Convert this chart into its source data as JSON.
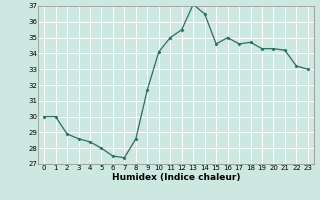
{
  "x": [
    0,
    1,
    2,
    3,
    4,
    5,
    6,
    7,
    8,
    9,
    10,
    11,
    12,
    13,
    14,
    15,
    16,
    17,
    18,
    19,
    20,
    21,
    22,
    23
  ],
  "y": [
    30.0,
    30.0,
    28.9,
    28.6,
    28.4,
    28.0,
    27.5,
    27.4,
    28.6,
    31.7,
    34.1,
    35.0,
    35.5,
    37.1,
    36.5,
    34.6,
    35.0,
    34.6,
    34.7,
    34.3,
    34.3,
    34.2,
    33.2,
    33.0
  ],
  "xlabel": "Humidex (Indice chaleur)",
  "ylim": [
    27,
    37
  ],
  "yticks": [
    27,
    28,
    29,
    30,
    31,
    32,
    33,
    34,
    35,
    36,
    37
  ],
  "xticks": [
    0,
    1,
    2,
    3,
    4,
    5,
    6,
    7,
    8,
    9,
    10,
    11,
    12,
    13,
    14,
    15,
    16,
    17,
    18,
    19,
    20,
    21,
    22,
    23
  ],
  "line_color": "#2d6e5e",
  "marker": "D",
  "marker_size": 1.5,
  "bg_color": "#cce8e0",
  "grid_color": "#ffffff",
  "xlabel_fontsize": 6.5,
  "xlabel_fontweight": "bold",
  "tick_fontsize": 5.0,
  "linewidth": 0.9
}
